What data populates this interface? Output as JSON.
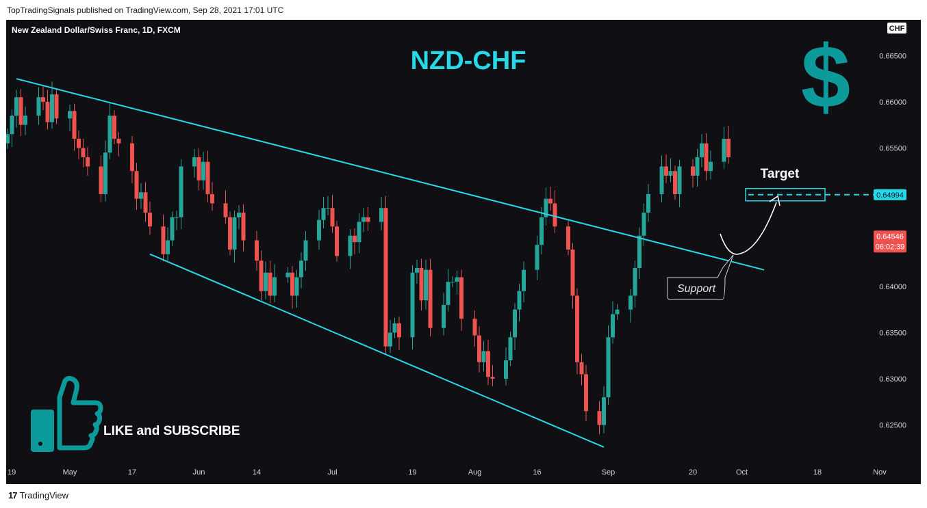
{
  "header": {
    "published_by": "TopTradingSignals published on TradingView.com, Sep 28, 2021 17:01 UTC"
  },
  "footer": {
    "logo_text": "TradingView",
    "logo_mark": "17"
  },
  "symbol": {
    "name": "New Zealand Dollar/Swiss Franc, 1D, FXCM",
    "currency_badge": "CHF"
  },
  "annotations": {
    "title": "NZD-CHF",
    "dollar_sign": "$",
    "target_label": "Target",
    "support_label": "Support",
    "like_subscribe": "LIKE and SUBSCRIBE",
    "thumbs_up_icon": "thumbs-up-icon"
  },
  "price_labels": {
    "target_price": "0.64994",
    "current_price": "0.64546",
    "countdown": "06:02:39"
  },
  "colors": {
    "background": "#0f0f14",
    "up": "#26a69a",
    "down": "#ef5350",
    "trendline": "#26d9e8",
    "title": "#26d9e8",
    "dollar": "#0d9a9a",
    "axis_text": "#d1d4dc"
  },
  "chart_data": {
    "type": "candlestick",
    "title": "NZD-CHF",
    "y_ticks": [
      "0.66500",
      "0.66000",
      "0.65500",
      "0.65000",
      "0.64500",
      "0.64000",
      "0.63500",
      "0.63000",
      "0.62500"
    ],
    "y_tick_values": [
      0.665,
      0.66,
      0.655,
      0.65,
      0.645,
      0.64,
      0.635,
      0.63,
      0.625
    ],
    "ylim": [
      0.6203,
      0.6674
    ],
    "x_ticks": [
      "19",
      "May",
      "17",
      "Jun",
      "14",
      "Jul",
      "19",
      "Aug",
      "16",
      "Sep",
      "20",
      "Oct",
      "18",
      "Nov"
    ],
    "x_tick_dates": [
      "2021-04-19",
      "2021-05-03",
      "2021-05-17",
      "2021-06-01",
      "2021-06-14",
      "2021-07-01",
      "2021-07-19",
      "2021-08-02",
      "2021-08-16",
      "2021-09-01",
      "2021-09-20",
      "2021-10-01",
      "2021-10-18",
      "2021-11-01"
    ],
    "closes": [
      0.6565,
      0.6585,
      0.6605,
      0.6575,
      0.6585,
      0.6605,
      0.66,
      0.6578,
      0.6608,
      0.6582,
      0.659,
      0.656,
      0.655,
      0.654,
      0.653,
      0.65,
      0.6545,
      0.6585,
      0.656,
      0.6555,
      0.6525,
      0.6495,
      0.6502,
      0.648,
      0.6465,
      0.6435,
      0.645,
      0.6475,
      0.6475,
      0.653,
      0.654,
      0.6515,
      0.6535,
      0.65,
      0.649,
      0.6475,
      0.644,
      0.6475,
      0.648,
      0.645,
      0.6428,
      0.6395,
      0.6415,
      0.639,
      0.641,
      0.6415,
      0.639,
      0.641,
      0.6428,
      0.645,
      0.6472,
      0.6485,
      0.6485,
      0.6465,
      0.6433,
      0.6455,
      0.6448,
      0.647,
      0.6475,
      0.647,
      0.6485,
      0.6335,
      0.635,
      0.636,
      0.6345,
      0.6415,
      0.642,
      0.6385,
      0.6418,
      0.6355,
      0.638,
      0.6405,
      0.6405,
      0.641,
      0.6365,
      0.6347,
      0.6318,
      0.633,
      0.6302,
      0.63,
      0.632,
      0.6345,
      0.6375,
      0.6395,
      0.6418,
      0.6445,
      0.6475,
      0.6495,
      0.649,
      0.6465,
      0.644,
      0.639,
      0.6318,
      0.6305,
      0.6265,
      0.625,
      0.628,
      0.6345,
      0.637,
      0.6375,
      0.639,
      0.642,
      0.6455,
      0.648,
      0.65,
      0.653,
      0.652,
      0.6525,
      0.65,
      0.653,
      0.652,
      0.654,
      0.6555,
      0.6525,
      0.6535,
      0.656,
      0.654,
      0.651,
      0.646,
      0.648,
      0.647,
      0.6525,
      0.6475,
      0.649,
      0.6466,
      0.6455
    ],
    "first_date": "2021-04-19",
    "last_date": "2021-09-28",
    "trendlines": [
      {
        "name": "upper resistance",
        "start": [
          "2021-04-21",
          0.6625
        ],
        "end": [
          "2021-10-06",
          0.6418
        ]
      },
      {
        "name": "lower support",
        "start": [
          "2021-05-21",
          0.6435
        ],
        "end": [
          "2021-08-31",
          0.6226
        ]
      }
    ],
    "target_level": 0.64994,
    "current_price": 0.64546
  }
}
